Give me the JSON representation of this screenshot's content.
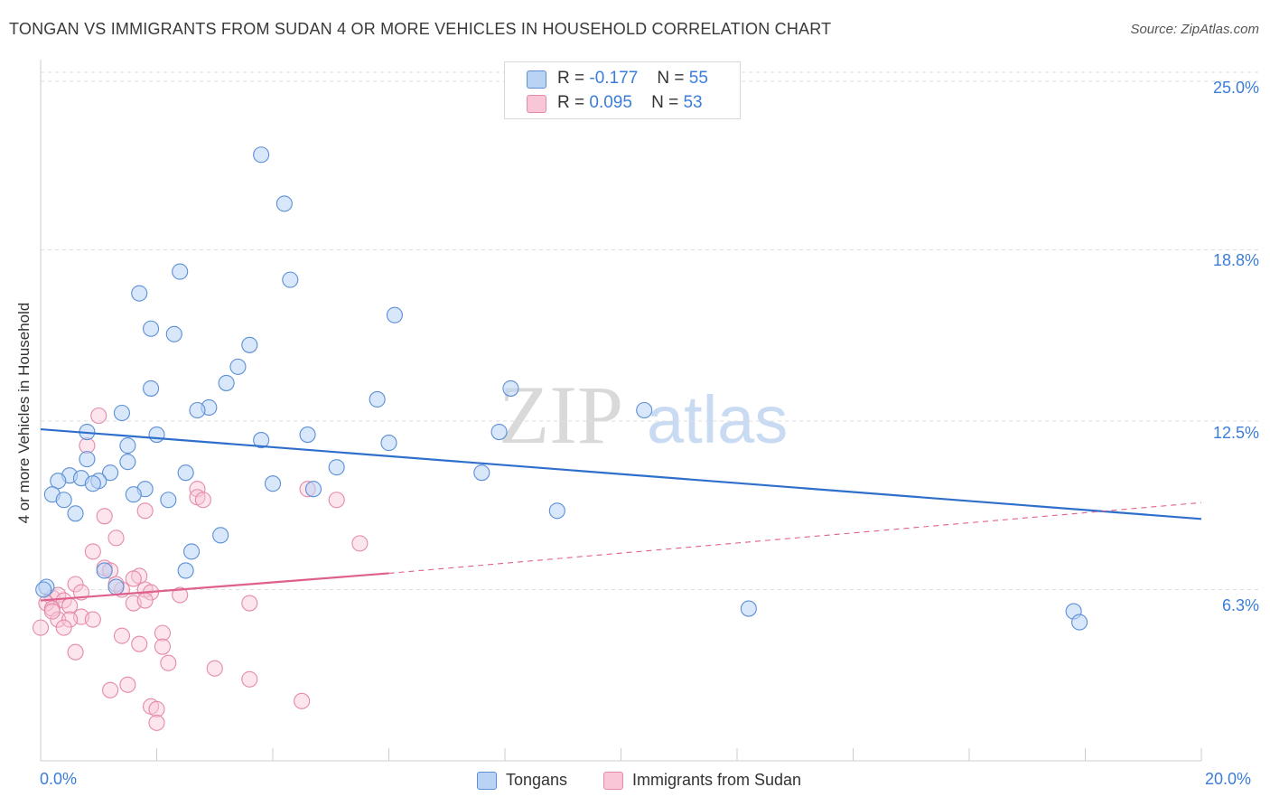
{
  "header": {
    "title": "TONGAN VS IMMIGRANTS FROM SUDAN 4 OR MORE VEHICLES IN HOUSEHOLD CORRELATION CHART",
    "source": "Source: ZipAtlas.com"
  },
  "colors": {
    "tongans_fill": "#b9d3f5",
    "tongans_stroke": "#5b8fd6",
    "tongans_line": "#2f6fcc",
    "sudan_fill": "#f8c6d6",
    "sudan_stroke": "#e58aa8",
    "sudan_line": "#e0608d",
    "accent_text": "#3b7dd8"
  },
  "legend": {
    "rows": [
      {
        "r_label": "R =",
        "r_value": "-0.177",
        "n_label": "N =",
        "n_value": "55"
      },
      {
        "r_label": "R =",
        "r_value": "0.095",
        "n_label": "N =",
        "n_value": "53"
      }
    ]
  },
  "bottom_legend": {
    "tongans": "Tongans",
    "sudan": "Immigrants from Sudan"
  },
  "watermark": {
    "zip": "ZIP",
    "atlas": "atlas"
  },
  "chart_data": {
    "type": "scatter",
    "title": "TONGAN VS IMMIGRANTS FROM SUDAN 4 OR MORE VEHICLES IN HOUSEHOLD CORRELATION CHART",
    "xlabel": "",
    "ylabel": "4 or more Vehicles in Household",
    "xlim": [
      0,
      20
    ],
    "ylim": [
      0,
      25.6
    ],
    "x_tick_labels": [
      "0.0%",
      "20.0%"
    ],
    "y_ticks": [
      6.3,
      12.5,
      18.8,
      25.0
    ],
    "y_tick_labels": [
      "6.3%",
      "12.5%",
      "18.8%",
      "25.0%"
    ],
    "grid": true,
    "legend_position": "top-center",
    "series": [
      {
        "name": "Tongans",
        "r": -0.177,
        "n": 55,
        "trend": {
          "x": [
            0,
            20
          ],
          "y": [
            12.2,
            8.9
          ]
        },
        "points": [
          [
            3.8,
            22.3
          ],
          [
            4.2,
            20.5
          ],
          [
            2.4,
            18.0
          ],
          [
            4.3,
            17.7
          ],
          [
            1.7,
            17.2
          ],
          [
            6.1,
            16.4
          ],
          [
            1.9,
            15.9
          ],
          [
            2.3,
            15.7
          ],
          [
            3.6,
            15.3
          ],
          [
            3.4,
            14.5
          ],
          [
            3.2,
            13.9
          ],
          [
            1.9,
            13.7
          ],
          [
            8.1,
            13.7
          ],
          [
            5.8,
            13.3
          ],
          [
            2.9,
            13.0
          ],
          [
            2.7,
            12.9
          ],
          [
            1.4,
            12.8
          ],
          [
            10.4,
            12.9
          ],
          [
            0.8,
            12.1
          ],
          [
            2.0,
            12.0
          ],
          [
            4.6,
            12.0
          ],
          [
            3.8,
            11.8
          ],
          [
            7.9,
            12.1
          ],
          [
            6.0,
            11.7
          ],
          [
            1.5,
            11.6
          ],
          [
            0.8,
            11.1
          ],
          [
            1.5,
            11.0
          ],
          [
            2.5,
            10.6
          ],
          [
            1.2,
            10.6
          ],
          [
            7.6,
            10.6
          ],
          [
            5.1,
            10.8
          ],
          [
            0.5,
            10.5
          ],
          [
            0.7,
            10.4
          ],
          [
            1.0,
            10.3
          ],
          [
            0.3,
            10.3
          ],
          [
            4.0,
            10.2
          ],
          [
            4.7,
            10.0
          ],
          [
            0.9,
            10.2
          ],
          [
            1.8,
            10.0
          ],
          [
            1.6,
            9.8
          ],
          [
            0.2,
            9.8
          ],
          [
            0.4,
            9.6
          ],
          [
            2.2,
            9.6
          ],
          [
            0.6,
            9.1
          ],
          [
            8.9,
            9.2
          ],
          [
            3.1,
            8.3
          ],
          [
            2.6,
            7.7
          ],
          [
            1.1,
            7.0
          ],
          [
            2.5,
            7.0
          ],
          [
            1.3,
            6.4
          ],
          [
            0.1,
            6.4
          ],
          [
            12.2,
            5.6
          ],
          [
            17.8,
            5.5
          ],
          [
            17.9,
            5.1
          ],
          [
            0.05,
            6.3
          ]
        ]
      },
      {
        "name": "Immigrants from Sudan",
        "r": 0.095,
        "n": 53,
        "trend_solid": {
          "x": [
            0,
            6.0
          ],
          "y": [
            5.9,
            6.9
          ]
        },
        "trend_dashed": {
          "x": [
            6.0,
            20
          ],
          "y": [
            6.9,
            9.5
          ]
        },
        "points": [
          [
            1.0,
            12.7
          ],
          [
            0.8,
            11.6
          ],
          [
            4.6,
            10.0
          ],
          [
            2.7,
            10.0
          ],
          [
            2.7,
            9.7
          ],
          [
            2.8,
            9.6
          ],
          [
            5.1,
            9.6
          ],
          [
            1.8,
            9.2
          ],
          [
            1.1,
            9.0
          ],
          [
            1.3,
            8.2
          ],
          [
            5.5,
            8.0
          ],
          [
            0.9,
            7.7
          ],
          [
            1.1,
            7.1
          ],
          [
            1.2,
            7.0
          ],
          [
            1.7,
            6.8
          ],
          [
            1.6,
            6.7
          ],
          [
            0.6,
            6.5
          ],
          [
            0.2,
            6.0
          ],
          [
            0.7,
            6.2
          ],
          [
            1.4,
            6.3
          ],
          [
            1.8,
            6.3
          ],
          [
            1.9,
            6.2
          ],
          [
            0.3,
            6.1
          ],
          [
            0.4,
            5.9
          ],
          [
            0.1,
            5.8
          ],
          [
            0.2,
            5.6
          ],
          [
            0.5,
            5.7
          ],
          [
            1.6,
            5.8
          ],
          [
            1.8,
            5.9
          ],
          [
            3.6,
            5.8
          ],
          [
            0.7,
            5.3
          ],
          [
            0.3,
            5.2
          ],
          [
            0.5,
            5.2
          ],
          [
            0.9,
            5.2
          ],
          [
            0.4,
            4.9
          ],
          [
            2.1,
            4.7
          ],
          [
            1.4,
            4.6
          ],
          [
            1.7,
            4.3
          ],
          [
            2.1,
            4.2
          ],
          [
            0.6,
            4.0
          ],
          [
            2.2,
            3.6
          ],
          [
            3.0,
            3.4
          ],
          [
            3.6,
            3.0
          ],
          [
            1.5,
            2.8
          ],
          [
            1.2,
            2.6
          ],
          [
            4.5,
            2.2
          ],
          [
            1.9,
            2.0
          ],
          [
            2.0,
            1.9
          ],
          [
            2.0,
            1.4
          ],
          [
            0.0,
            4.9
          ],
          [
            0.2,
            5.5
          ],
          [
            1.3,
            6.5
          ],
          [
            2.4,
            6.1
          ]
        ]
      }
    ]
  }
}
